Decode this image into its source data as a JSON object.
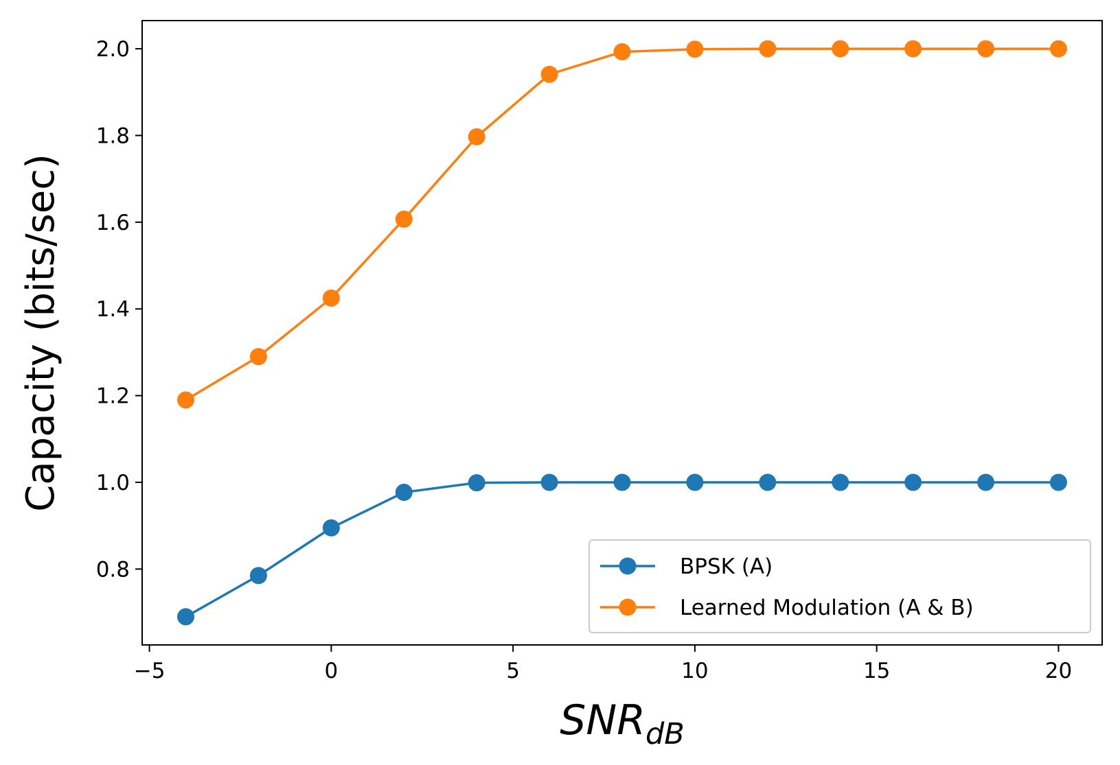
{
  "chart_data": {
    "type": "line",
    "xlabel_main": "SNR",
    "xlabel_sub": "dB",
    "ylabel": "Capacity (bits/sec)",
    "xlim": [
      -5.2,
      21.2
    ],
    "ylim": [
      0.625,
      2.065
    ],
    "xticks": [
      -5,
      0,
      5,
      10,
      15,
      20
    ],
    "xtick_labels": [
      "−5",
      "0",
      "5",
      "10",
      "15",
      "20"
    ],
    "yticks": [
      0.8,
      1.0,
      1.2,
      1.4,
      1.6,
      1.8,
      2.0
    ],
    "ytick_labels": [
      "0.8",
      "1.0",
      "1.2",
      "1.4",
      "1.6",
      "1.8",
      "2.0"
    ],
    "grid": false,
    "legend_position": "bottom-right",
    "x": [
      -4,
      -2,
      0,
      2,
      4,
      6,
      8,
      10,
      12,
      14,
      16,
      18,
      20
    ],
    "series": [
      {
        "name": "BPSK (A)",
        "color": "#1f77b4",
        "values": [
          0.69,
          0.785,
          0.895,
          0.977,
          0.999,
          1.0,
          1.0,
          1.0,
          1.0,
          1.0,
          1.0,
          1.0,
          1.0
        ]
      },
      {
        "name": "Learned Modulation (A & B)",
        "color": "#ff7f0e",
        "values": [
          1.19,
          1.29,
          1.425,
          1.607,
          1.797,
          1.941,
          1.993,
          1.999,
          2.0,
          2.0,
          2.0,
          2.0,
          2.0
        ]
      }
    ]
  }
}
